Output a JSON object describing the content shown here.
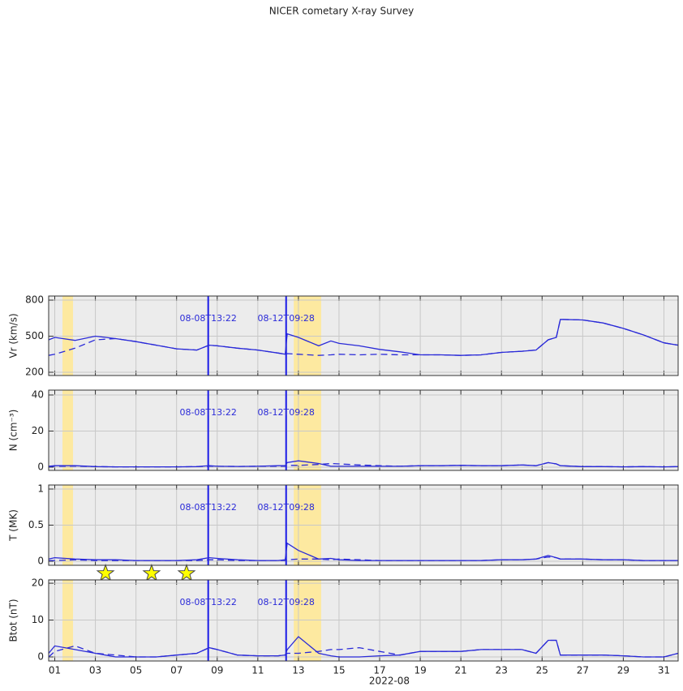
{
  "title": "NICER cometary X-ray Survey",
  "shaded_intervals": [
    [
      1.38,
      1.9
    ],
    [
      12.77,
      14.12
    ]
  ],
  "events": [
    {
      "x": 8.557,
      "label": "08-08T13:22"
    },
    {
      "x": 12.394,
      "label": "08-12T09:28"
    }
  ],
  "chart_data": [
    {
      "type": "line",
      "ylabel": "Vr (km/s)",
      "ylim": [
        173,
        834
      ],
      "yticks": [
        200,
        500,
        800
      ],
      "grid": true,
      "x": [
        0.7,
        1,
        2,
        3,
        4,
        5,
        6,
        7,
        8,
        8.6,
        9,
        10,
        11,
        12,
        12.35,
        12.45,
        13,
        14,
        14.6,
        15,
        16,
        17,
        18,
        19,
        20,
        21,
        22,
        23,
        24,
        24.7,
        25.3,
        25.7,
        25.9,
        27,
        28,
        29,
        30,
        31,
        31.7
      ],
      "series": [
        {
          "style": "dashed",
          "color": "#2a2ad8",
          "values": [
            340,
            350,
            400,
            470,
            480,
            455,
            425,
            395,
            385,
            425,
            420,
            400,
            385,
            360,
            350,
            355,
            350,
            340,
            345,
            350,
            345,
            350,
            345,
            345,
            345,
            340,
            345,
            365,
            375,
            385,
            470,
            490,
            640,
            635,
            610,
            565,
            510,
            445,
            425
          ]
        },
        {
          "style": "solid",
          "color": "#2a2ad8",
          "values": [
            470,
            490,
            465,
            500,
            480,
            455,
            425,
            395,
            385,
            425,
            420,
            400,
            385,
            360,
            350,
            520,
            490,
            420,
            460,
            440,
            420,
            390,
            370,
            345,
            345,
            340,
            345,
            365,
            375,
            385,
            470,
            490,
            640,
            635,
            610,
            565,
            510,
            445,
            425
          ]
        }
      ]
    },
    {
      "type": "line",
      "ylabel": "N (cm⁻³)",
      "ylim": [
        -1.8,
        42.7
      ],
      "yticks": [
        0,
        20,
        40
      ],
      "grid": true,
      "x": [
        0.7,
        1,
        2,
        3,
        4,
        5,
        6,
        7,
        8,
        8.6,
        9,
        10,
        11,
        12,
        12.35,
        12.45,
        13,
        14,
        14.6,
        15,
        16,
        17,
        18,
        19,
        20,
        21,
        22,
        23,
        24,
        24.7,
        25.3,
        25.7,
        25.9,
        27,
        28,
        29,
        30,
        31,
        31.7
      ],
      "series": [
        {
          "style": "dashed",
          "color": "#2a2ad8",
          "values": [
            0.3,
            0.5,
            0.6,
            0.3,
            0.2,
            0.2,
            0.2,
            0.2,
            0.3,
            0.5,
            0.5,
            0.4,
            0.5,
            0.5,
            0.5,
            1,
            1,
            1.5,
            2,
            1.8,
            1.2,
            0.8,
            0.5,
            0.8,
            0.8,
            1,
            0.8,
            0.8,
            1.2,
            0.8,
            2.5,
            1.8,
            0.8,
            0.3,
            0.3,
            0.2,
            0.3,
            0.2,
            0.3
          ]
        },
        {
          "style": "solid",
          "color": "#2a2ad8",
          "values": [
            0.5,
            0.8,
            0.8,
            0.3,
            0.2,
            0.2,
            0.2,
            0.2,
            0.3,
            0.8,
            0.5,
            0.4,
            0.5,
            0.8,
            0.8,
            2.5,
            3.5,
            2,
            0.5,
            0.5,
            0.5,
            0.5,
            0.5,
            0.8,
            0.8,
            1,
            0.8,
            0.8,
            1.2,
            0.8,
            2.5,
            1.8,
            0.8,
            0.3,
            0.3,
            0.2,
            0.3,
            0.2,
            0.3
          ]
        }
      ]
    },
    {
      "type": "line",
      "ylabel": "T (MK)",
      "ylim": [
        -0.056,
        1.056
      ],
      "yticks": [
        0,
        0.5,
        1
      ],
      "grid": true,
      "star_x": [
        3.5,
        5.77,
        7.49
      ],
      "x": [
        0.7,
        1,
        2,
        3,
        4,
        5,
        6,
        7,
        8,
        8.6,
        9,
        10,
        11,
        12,
        12.35,
        12.45,
        13,
        14,
        14.6,
        15,
        16,
        17,
        18,
        19,
        20,
        21,
        22,
        23,
        24,
        24.7,
        25.3,
        25.7,
        25.9,
        27,
        28,
        29,
        30,
        31,
        31.7
      ],
      "series": [
        {
          "style": "dashed",
          "color": "#2a2ad8",
          "values": [
            0.01,
            0.01,
            0.02,
            0.01,
            0.01,
            0.01,
            0.01,
            0.01,
            0.01,
            0.02,
            0.02,
            0.01,
            0.01,
            0.01,
            0.01,
            0.02,
            0.03,
            0.03,
            0.02,
            0.03,
            0.02,
            0.01,
            0.01,
            0.01,
            0.01,
            0.01,
            0.01,
            0.02,
            0.02,
            0.03,
            0.06,
            0.05,
            0.03,
            0.03,
            0.02,
            0.02,
            0.01,
            0.01,
            0.01
          ]
        },
        {
          "style": "solid",
          "color": "#2a2ad8",
          "values": [
            0.03,
            0.05,
            0.03,
            0.02,
            0.02,
            0.01,
            0.01,
            0.01,
            0.02,
            0.05,
            0.04,
            0.02,
            0.01,
            0.01,
            0.02,
            0.25,
            0.15,
            0.03,
            0.04,
            0.02,
            0.01,
            0.01,
            0.01,
            0.01,
            0.01,
            0.01,
            0.01,
            0.02,
            0.02,
            0.03,
            0.08,
            0.05,
            0.03,
            0.03,
            0.02,
            0.02,
            0.01,
            0.01,
            0.01
          ]
        }
      ]
    },
    {
      "type": "line",
      "ylabel": "Btot (nT)",
      "ylim": [
        -1.1,
        20.9
      ],
      "yticks": [
        0,
        10,
        20
      ],
      "grid": true,
      "xlabel": "2022-08",
      "xlim": [
        0.7,
        31.7
      ],
      "xticks": [
        {
          "value": 1,
          "label": "01"
        },
        {
          "value": 3,
          "label": "03"
        },
        {
          "value": 5,
          "label": "05"
        },
        {
          "value": 7,
          "label": "07"
        },
        {
          "value": 9,
          "label": "09"
        },
        11,
        13,
        15,
        17,
        19,
        21,
        23,
        25,
        27,
        29,
        31
      ],
      "x": [
        0.7,
        1,
        2,
        3,
        4,
        5,
        6,
        7,
        8,
        8.6,
        9,
        10,
        11,
        12,
        12.35,
        12.45,
        13,
        14,
        14.6,
        15,
        16,
        17,
        18,
        19,
        20,
        21,
        22,
        23,
        24,
        24.7,
        25.3,
        25.7,
        25.9,
        27,
        28,
        29,
        30,
        31,
        31.7
      ],
      "series": [
        {
          "style": "dashed",
          "color": "#2a2ad8",
          "values": [
            0,
            1.5,
            3,
            1,
            0.5,
            0,
            0,
            0.5,
            1,
            2.5,
            2,
            0.5,
            0.3,
            0.3,
            0.5,
            1,
            1,
            1.5,
            2,
            2,
            2.5,
            1.5,
            0.5,
            1.5,
            1.5,
            1.5,
            2,
            2,
            2,
            1,
            4.5,
            4.5,
            0.5,
            0.5,
            0.5,
            0.3,
            0,
            0,
            1
          ]
        },
        {
          "style": "solid",
          "color": "#2a2ad8",
          "values": [
            1,
            3,
            2,
            1,
            0,
            0,
            0,
            0.5,
            1,
            2.5,
            2,
            0.5,
            0.3,
            0.3,
            0.5,
            2,
            5.5,
            1,
            0.3,
            0,
            0,
            0.3,
            0.5,
            1.5,
            1.5,
            1.5,
            2,
            2,
            2,
            1,
            4.5,
            4.5,
            0.5,
            0.5,
            0.5,
            0.3,
            0,
            0,
            1
          ]
        }
      ]
    }
  ]
}
